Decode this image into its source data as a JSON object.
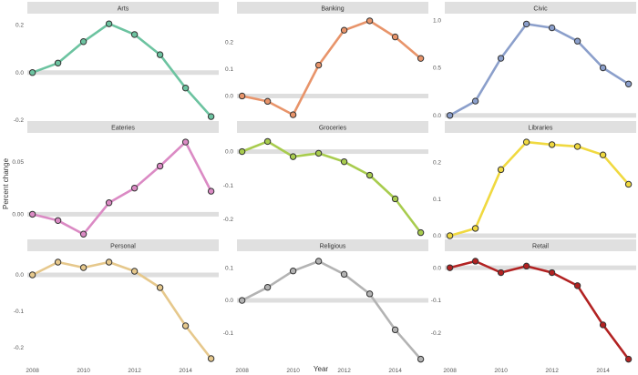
{
  "chart_data": {
    "type": "line",
    "layout": "facet-grid-3x3",
    "xlabel": "Year",
    "ylabel": "Percent change",
    "x_ticks": [
      "2008",
      "2010",
      "2012",
      "2014"
    ],
    "x": [
      2008,
      2009,
      2010,
      2011,
      2012,
      2013,
      2014,
      2015
    ],
    "xlim": [
      2007.8,
      2015.3
    ],
    "grid": "off",
    "panels": [
      {
        "name": "Arts",
        "color": "#6CC3A0",
        "values": [
          0.0,
          0.04,
          0.13,
          0.205,
          0.16,
          0.075,
          -0.065,
          -0.185
        ],
        "ylim": [
          -0.2,
          0.24
        ],
        "yticks": [
          -0.2,
          0.0,
          0.2
        ],
        "ytick_labels": [
          "-0.2",
          "0.0",
          "0.2"
        ]
      },
      {
        "name": "Banking",
        "color": "#E8946A",
        "values": [
          0.0,
          -0.02,
          -0.07,
          0.115,
          0.245,
          0.28,
          0.22,
          0.14
        ],
        "ylim": [
          -0.09,
          0.3
        ],
        "yticks": [
          0.0,
          0.1,
          0.2
        ],
        "ytick_labels": [
          "0.0",
          "0.1",
          "0.2"
        ]
      },
      {
        "name": "Civic",
        "color": "#8B9FCB",
        "values": [
          0.0,
          0.15,
          0.6,
          0.96,
          0.92,
          0.78,
          0.5,
          0.33
        ],
        "ylim": [
          -0.05,
          1.05
        ],
        "yticks": [
          0.0,
          0.5,
          1.0
        ],
        "ytick_labels": [
          "0.0",
          "0.5",
          "1.0"
        ]
      },
      {
        "name": "Eateries",
        "color": "#DB8AC4",
        "values": [
          0.0,
          -0.006,
          -0.019,
          0.011,
          0.025,
          0.046,
          0.069,
          0.022
        ],
        "ylim": [
          -0.024,
          0.076
        ],
        "yticks": [
          0.0,
          0.05
        ],
        "ytick_labels": [
          "0.00",
          "0.05"
        ]
      },
      {
        "name": "Groceries",
        "color": "#A8CC4E",
        "values": [
          0.0,
          0.03,
          -0.015,
          -0.005,
          -0.03,
          -0.07,
          -0.14,
          -0.24
        ],
        "ylim": [
          -0.26,
          0.05
        ],
        "yticks": [
          -0.2,
          -0.1,
          0.0
        ],
        "ytick_labels": [
          "-0.2",
          "-0.1",
          "0.0"
        ]
      },
      {
        "name": "Libraries",
        "color": "#F0D940",
        "values": [
          0.0,
          0.02,
          0.18,
          0.255,
          0.248,
          0.243,
          0.22,
          0.14
        ],
        "ylim": [
          -0.01,
          0.275
        ],
        "yticks": [
          0.0,
          0.1,
          0.2
        ],
        "ytick_labels": [
          "0.0",
          "0.1",
          "0.2"
        ]
      },
      {
        "name": "Personal",
        "color": "#E6C88C",
        "values": [
          0.0,
          0.035,
          0.02,
          0.035,
          0.01,
          -0.035,
          -0.14,
          -0.23
        ],
        "ylim": [
          -0.245,
          0.06
        ],
        "yticks": [
          -0.2,
          -0.1,
          0.0
        ],
        "ytick_labels": [
          "-0.2",
          "-0.1",
          "0.0"
        ]
      },
      {
        "name": "Religious",
        "color": "#B3B3B3",
        "values": [
          0.0,
          0.04,
          0.09,
          0.12,
          0.08,
          0.02,
          -0.09,
          -0.18
        ],
        "ylim": [
          -0.195,
          0.145
        ],
        "yticks": [
          -0.1,
          0.0,
          0.1
        ],
        "ytick_labels": [
          "-0.1",
          "0.0",
          "0.1"
        ]
      },
      {
        "name": "Retail",
        "color": "#B22222",
        "values": [
          0.0,
          0.02,
          -0.015,
          0.005,
          -0.015,
          -0.055,
          -0.175,
          -0.28
        ],
        "ylim": [
          -0.295,
          0.045
        ],
        "yticks": [
          -0.2,
          -0.1,
          0.0
        ],
        "ytick_labels": [
          "-0.2",
          "-0.1",
          "0.0"
        ]
      }
    ]
  }
}
